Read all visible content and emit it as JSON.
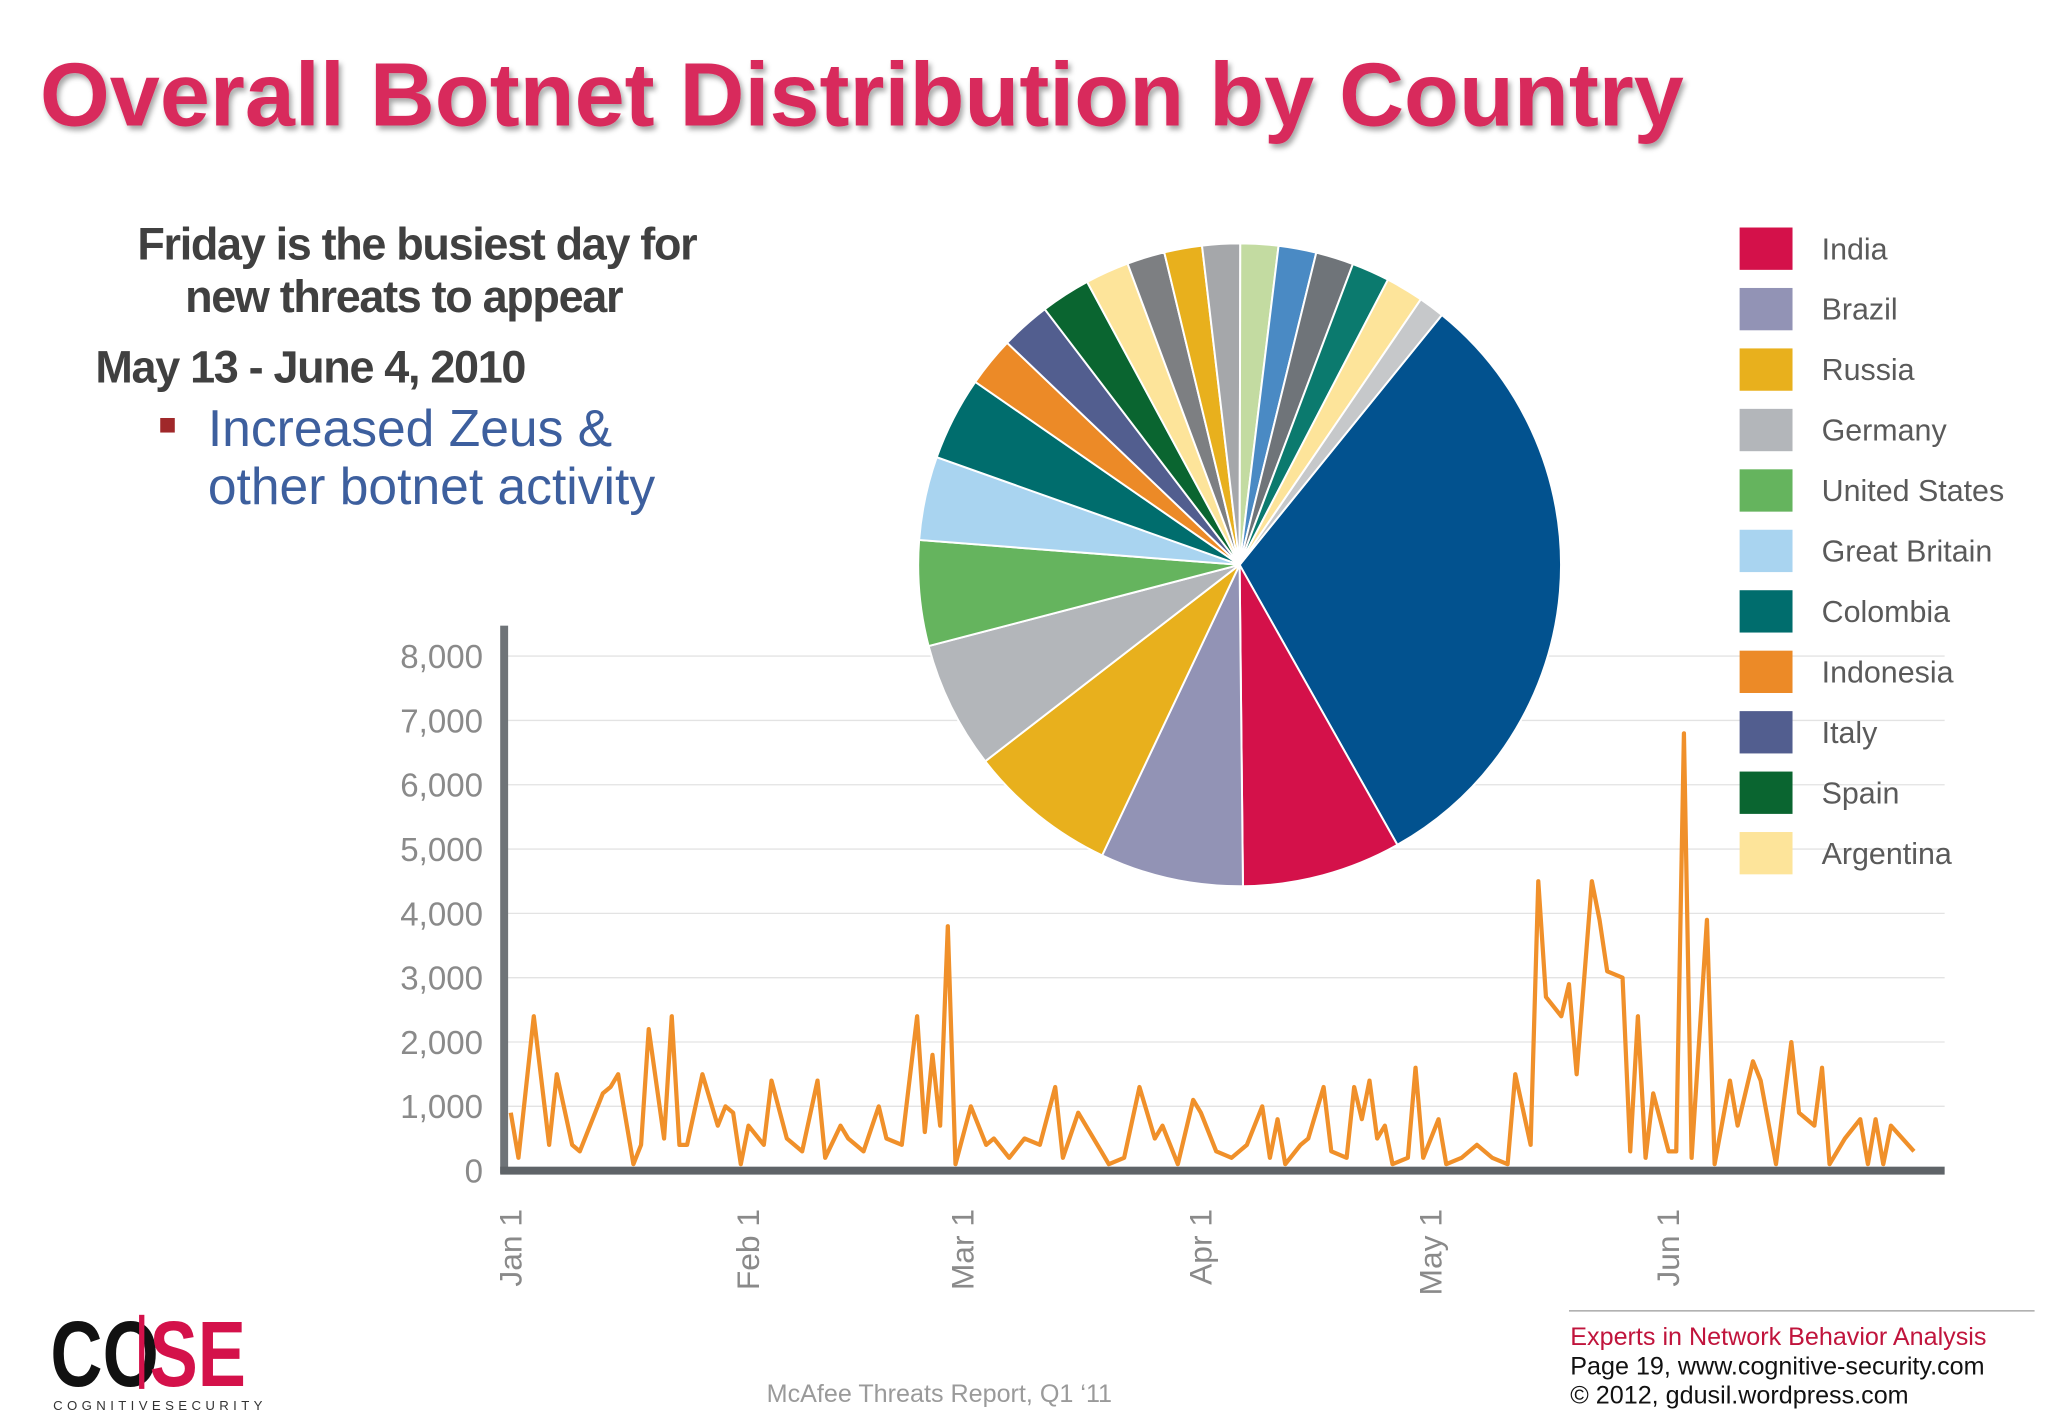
{
  "title": "Overall Botnet Distribution by Country",
  "notes": {
    "heading_lines": [
      "Friday is the busiest day for",
      "new threats to appear"
    ],
    "date": "May 13 - June 4, 2010",
    "bullet_lines": [
      "Increased Zeus &",
      "other botnet activity"
    ]
  },
  "logo": {
    "left": "CO",
    "right": "SE",
    "tagline": "COGNITIVESECURITY"
  },
  "footer": {
    "source": "McAfee Threats Report, Q1 ‘11",
    "tagline": "Experts in Network Behavior Analysis",
    "page": "Page 19, www.cognitive-security.com",
    "copyright": "© 2012, gdusil.wordpress.com"
  },
  "chart_data": [
    {
      "type": "line",
      "color": "#f0902a",
      "grid": true,
      "x": [
        0,
        1,
        3,
        5,
        6,
        8,
        9,
        12,
        13,
        14,
        16,
        17,
        18,
        20,
        21,
        22,
        23,
        25,
        27,
        28,
        29,
        30,
        31,
        33,
        34,
        36,
        38,
        40,
        41,
        43,
        44,
        46,
        48,
        49,
        51,
        53,
        54,
        55,
        56,
        57,
        58,
        60,
        62,
        63,
        65,
        67,
        69,
        71,
        72,
        74,
        77,
        78,
        80,
        82,
        84,
        85,
        87,
        89,
        90,
        92,
        94,
        96,
        98,
        99,
        100,
        101,
        103,
        104,
        106,
        107,
        109,
        110,
        111,
        112,
        113,
        114,
        115,
        117,
        118,
        119,
        121,
        122,
        124,
        126,
        128,
        130,
        131,
        133,
        134,
        135,
        137,
        138,
        139,
        141,
        142,
        143,
        145,
        146,
        147,
        148,
        149,
        151,
        152,
        153,
        154,
        156,
        157,
        159,
        160,
        162,
        163,
        165,
        167,
        168,
        170,
        171,
        172,
        174,
        176,
        177,
        178,
        179,
        180,
        183
      ],
      "values": [
        900,
        200,
        2400,
        400,
        1500,
        400,
        300,
        1200,
        1300,
        1500,
        100,
        400,
        2200,
        500,
        2400,
        400,
        400,
        1500,
        700,
        1000,
        900,
        100,
        700,
        400,
        1400,
        500,
        300,
        1400,
        200,
        700,
        500,
        300,
        1000,
        500,
        400,
        2400,
        600,
        1800,
        700,
        3800,
        100,
        1000,
        400,
        500,
        200,
        500,
        400,
        1300,
        200,
        900,
        300,
        100,
        200,
        1300,
        500,
        700,
        100,
        1100,
        900,
        300,
        200,
        400,
        1000,
        200,
        800,
        100,
        400,
        500,
        1300,
        300,
        200,
        1300,
        800,
        1400,
        500,
        700,
        100,
        200,
        1600,
        200,
        800,
        100,
        200,
        400,
        200,
        100,
        1500,
        400,
        4500,
        2700,
        2400,
        2900,
        1500,
        4500,
        3900,
        3100,
        3000,
        300,
        2400,
        200,
        1200,
        300,
        300,
        6800,
        200,
        3900,
        100,
        1400,
        700,
        1700,
        1400,
        100,
        2000,
        900,
        700,
        1600,
        100,
        500,
        800,
        100,
        800,
        100,
        700,
        300
      ],
      "xlim": [
        0,
        187
      ],
      "xticks": [
        {
          "value": 0,
          "label": "Jan 1"
        },
        {
          "value": 31,
          "label": "Feb 1"
        },
        {
          "value": 59,
          "label": "Mar 1"
        },
        {
          "value": 90,
          "label": "Apr 1"
        },
        {
          "value": 120,
          "label": "May 1"
        },
        {
          "value": 151,
          "label": "Jun 1"
        }
      ],
      "ylim": [
        0,
        8000
      ],
      "yticks": [
        0,
        {
          "value": 1000,
          "label": "1,000"
        },
        {
          "value": 2000,
          "label": "2,000"
        },
        {
          "value": 3000,
          "label": "3,000"
        },
        {
          "value": 4000,
          "label": "4,000"
        },
        {
          "value": 5000,
          "label": "5,000"
        },
        {
          "value": 6000,
          "label": "6,000"
        },
        {
          "value": 7000,
          "label": "7,000"
        },
        {
          "value": 8000,
          "label": "8,000"
        }
      ]
    },
    {
      "type": "pie",
      "start_angle": 39,
      "categories": [
        null,
        "India",
        "Brazil",
        "Russia",
        "Germany",
        "United States",
        "Great Britain",
        "Colombia",
        "Indonesia",
        "Italy",
        "Spain",
        "Argentina",
        null,
        null,
        null,
        null,
        null,
        null,
        null,
        null,
        null
      ],
      "values": [
        31,
        8,
        7.2,
        7.5,
        6.4,
        5.3,
        4.2,
        4.2,
        2.5,
        2.5,
        2.5,
        2.2,
        1.9,
        1.9,
        1.9,
        1.9,
        1.9,
        1.9,
        1.9,
        1.9,
        1.3
      ],
      "colors": [
        "#02528f",
        "#d4114a",
        "#9293b5",
        "#e8b01d",
        "#b3b6ba",
        "#65b45e",
        "#a9d4f0",
        "#006d6d",
        "#ec8a27",
        "#525e8f",
        "#0a6530",
        "#fde49a",
        "#7d7f82",
        "#e8b01d",
        "#a5a7aa",
        "#c3dba1",
        "#4a8ac4",
        "#6f7479",
        "#0b7a6e",
        "#fde49a",
        "#c6c8ca"
      ],
      "legend": "right"
    }
  ]
}
